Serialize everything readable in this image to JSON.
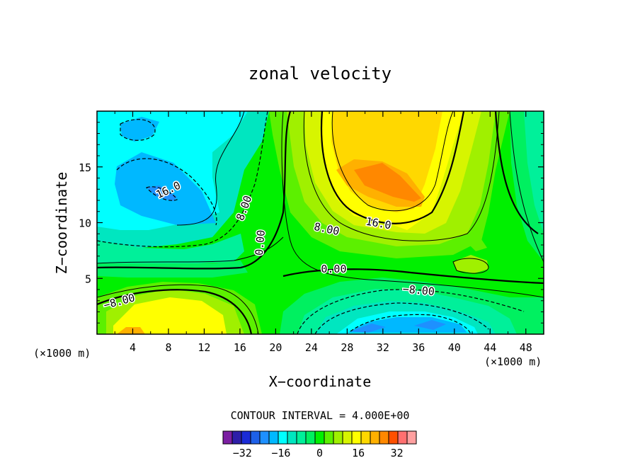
{
  "chart_data": {
    "type": "heatmap",
    "title": "zonal velocity",
    "xlabel": "X−coordinate",
    "ylabel": "Z−coordinate",
    "x_unit_left": "(×1000 m)",
    "x_unit_right": "(×1000 m)",
    "xlim": [
      0,
      50
    ],
    "ylim": [
      0,
      20
    ],
    "x_ticks": [
      4,
      8,
      12,
      16,
      20,
      24,
      28,
      32,
      36,
      40,
      44,
      48
    ],
    "y_ticks": [
      5,
      10,
      15
    ],
    "contour_interval_label": "CONTOUR INTERVAL = 4.000E+00",
    "contour_labels": [
      {
        "text": "16.0",
        "x": 8.0,
        "z": 12.9,
        "angle": -25
      },
      {
        "text": "8.00",
        "x": 16.5,
        "z": 11.3,
        "angle": -70
      },
      {
        "text": "0.00",
        "x": 18.3,
        "z": 8.2,
        "angle": -85
      },
      {
        "text": "8.00",
        "x": 25.7,
        "z": 9.4,
        "angle": 12
      },
      {
        "text": "16.0",
        "x": 31.5,
        "z": 9.9,
        "angle": 10
      },
      {
        "text": "0.00",
        "x": 26.5,
        "z": 5.8,
        "angle": 0
      },
      {
        "text": "−8.00",
        "x": 36.0,
        "z": 3.9,
        "angle": 5
      },
      {
        "text": "−8.00",
        "x": 2.5,
        "z": 2.9,
        "angle": -15
      }
    ],
    "colorbar": {
      "levels": [
        -40,
        -36,
        -32,
        -28,
        -24,
        -20,
        -16,
        -12,
        -8,
        -4,
        0,
        4,
        8,
        12,
        16,
        20,
        24,
        28,
        32,
        36,
        40
      ],
      "tick_labels": [
        "−32",
        "−16",
        "0",
        "16",
        "32"
      ],
      "tick_values": [
        -32,
        -16,
        0,
        16,
        32
      ],
      "colors": [
        "#7b1fa2",
        "#2e1fa8",
        "#1a2bd6",
        "#1e60e8",
        "#1e90ff",
        "#00b8ff",
        "#00ffff",
        "#00e6c0",
        "#00f09a",
        "#00f060",
        "#00f000",
        "#5cf000",
        "#a0f000",
        "#d7f500",
        "#ffff00",
        "#ffd800",
        "#ffb000",
        "#ff8800",
        "#ff5000",
        "#ff7070",
        "#ffa0a0"
      ]
    }
  }
}
